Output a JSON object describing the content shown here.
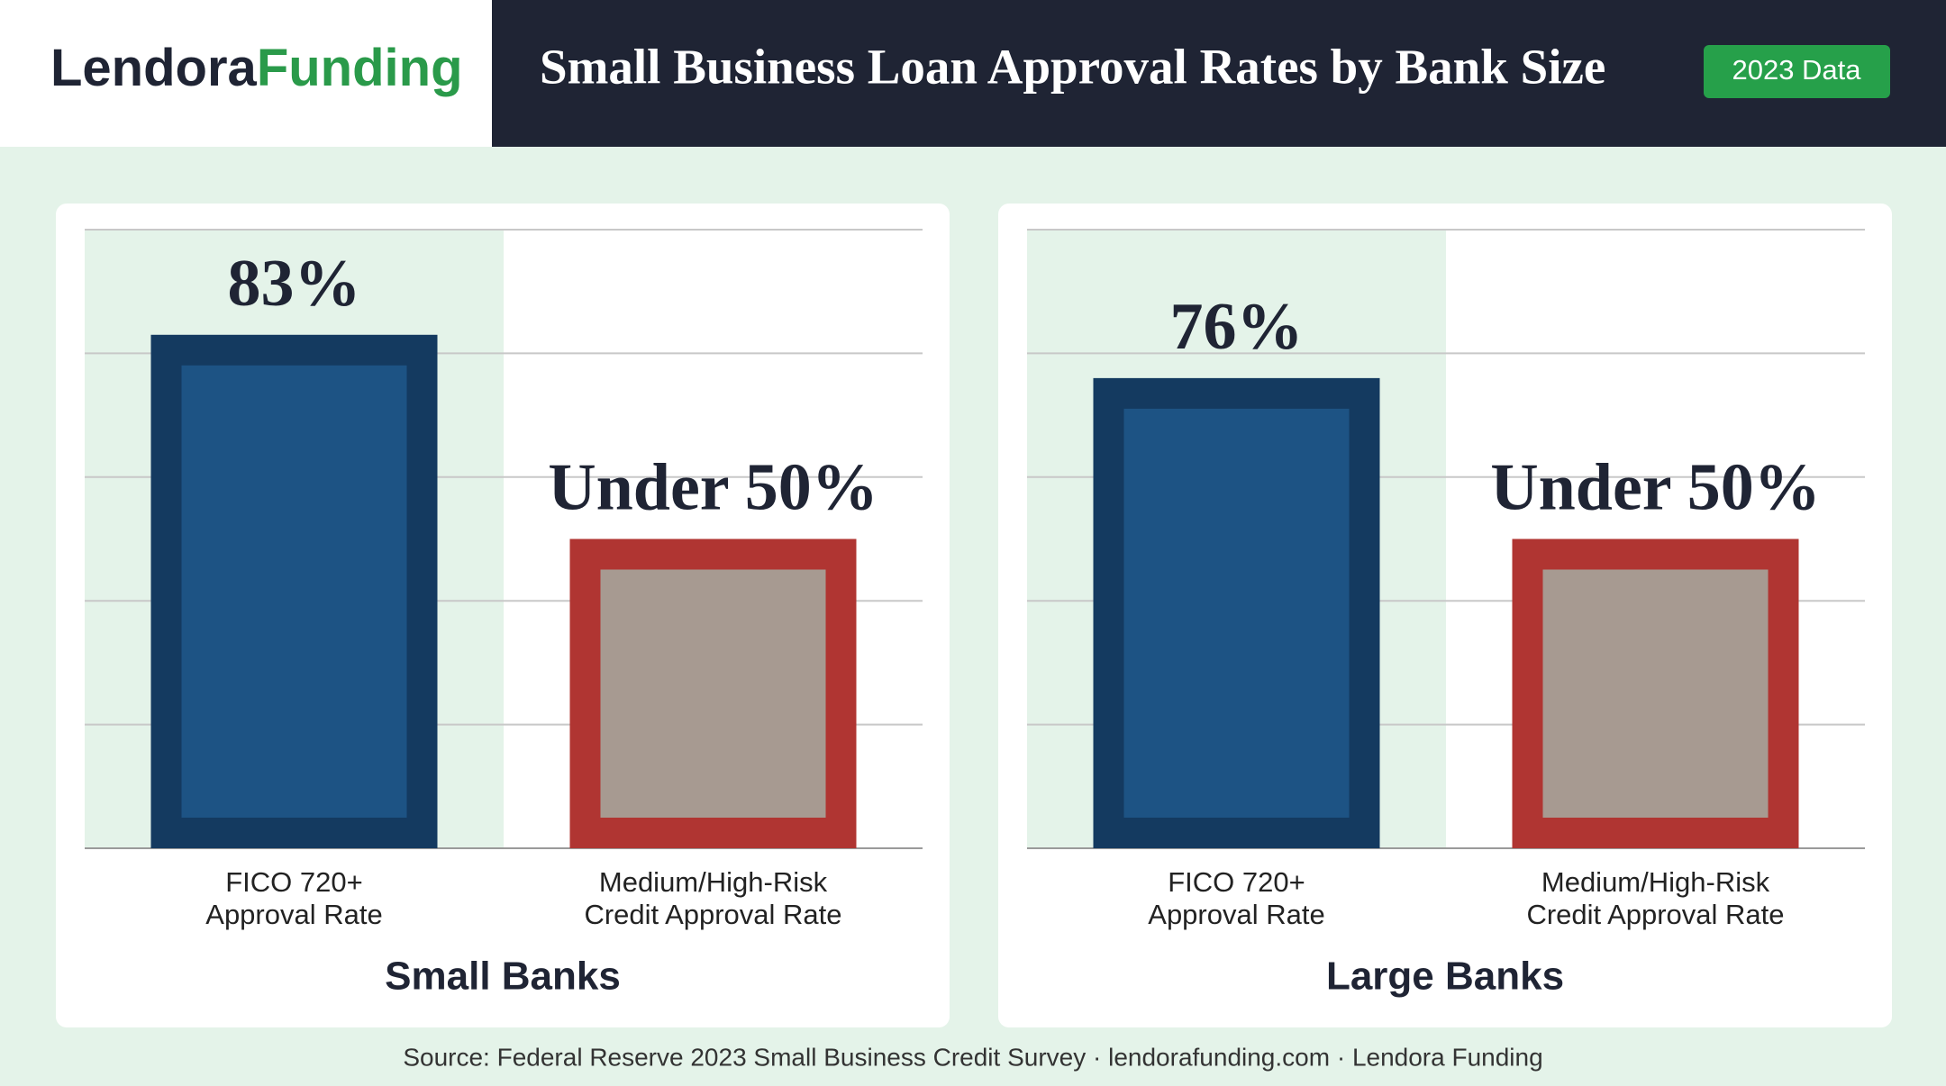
{
  "brand": {
    "first": "Lendora",
    "second": "Funding"
  },
  "title": "Small Business Loan Approval Rates by Bank Size",
  "badge": "2023 Data",
  "source": "Source: Federal Reserve 2023 Small Business Credit Survey · lendorafunding.com · Lendora Funding",
  "chart_data": [
    {
      "type": "bar",
      "title": "Small Banks",
      "categories": [
        "FICO 720+\nApproval Rate",
        "Medium/High-Risk\nCredit Approval Rate"
      ],
      "values": [
        83,
        50
      ],
      "value_labels": [
        "83%",
        "Under 50%"
      ],
      "colors": [
        "#1d5384",
        "#a79a91"
      ],
      "edge_colors": [
        "#143a60",
        "#b03532"
      ],
      "ylim": [
        0,
        100
      ]
    },
    {
      "type": "bar",
      "title": "Large Banks",
      "categories": [
        "FICO 720+\nApproval Rate",
        "Medium/High-Risk\nCredit Approval Rate"
      ],
      "values": [
        76,
        50
      ],
      "value_labels": [
        "76%",
        "Under 50%"
      ],
      "colors": [
        "#1d5384",
        "#a79a91"
      ],
      "edge_colors": [
        "#143a60",
        "#b03532"
      ],
      "ylim": [
        0,
        100
      ]
    }
  ]
}
